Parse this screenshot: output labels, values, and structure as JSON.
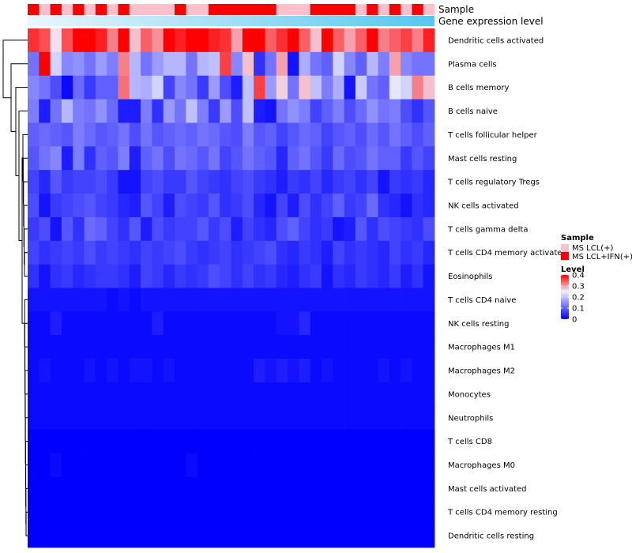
{
  "chart_data": {
    "type": "heatmap",
    "annotations": {
      "sample_label": "Sample",
      "gene_label": "Gene expression level"
    },
    "sample_groups": [
      1,
      0,
      1,
      0,
      1,
      0,
      1,
      0,
      1,
      0,
      0,
      0,
      0,
      1,
      0,
      0,
      1,
      1,
      1,
      1,
      1,
      1,
      0,
      0,
      0,
      1,
      1,
      1,
      1,
      0,
      1,
      0,
      1,
      0,
      1,
      0
    ],
    "rows": [
      "Dendritic cells activated",
      "Plasma cells",
      "B cells memory",
      "B cells naive",
      "T cells follicular helper",
      "Mast cells resting",
      "T cells regulatory  Tregs",
      "NK cells activated",
      "T cells gamma delta",
      "T cells CD4 memory activated",
      "Eosinophils",
      "T cells CD4 naive",
      "NK cells resting",
      "Macrophages M1",
      "Macrophages M2",
      "Monocytes",
      "Neutrophils",
      "T cells CD8",
      "Macrophages M0",
      "Mast cells activated",
      "T cells CD4 memory resting",
      "Dendritic cells resting"
    ],
    "values": [
      [
        0.37,
        0.35,
        0.26,
        0.35,
        0.4,
        0.4,
        0.38,
        0.32,
        0.4,
        0.28,
        0.34,
        0.31,
        0.4,
        0.38,
        0.4,
        0.4,
        0.38,
        0.37,
        0.3,
        0.4,
        0.4,
        0.34,
        0.37,
        0.4,
        0.34,
        0.28,
        0.4,
        0.34,
        0.3,
        0.34,
        0.4,
        0.32,
        0.34,
        0.36,
        0.32,
        0.38
      ],
      [
        0.12,
        0.4,
        0.22,
        0.14,
        0.15,
        0.12,
        0.16,
        0.13,
        0.32,
        0.19,
        0.12,
        0.16,
        0.19,
        0.19,
        0.12,
        0.19,
        0.2,
        0.36,
        0.14,
        0.28,
        0.05,
        0.12,
        0.3,
        0.02,
        0.18,
        0.12,
        0.1,
        0.22,
        0.14,
        0.1,
        0.19,
        0.13,
        0.3,
        0.14,
        0.12,
        0.12
      ],
      [
        0.14,
        0.12,
        0.08,
        0.01,
        0.11,
        0.06,
        0.1,
        0.1,
        0.33,
        0.19,
        0.18,
        0.22,
        0.07,
        0.14,
        0.12,
        0.06,
        0.16,
        0.08,
        0.03,
        0.2,
        0.36,
        0.16,
        0.27,
        0.12,
        0.28,
        0.2,
        0.13,
        0.18,
        0.02,
        0.21,
        0.12,
        0.1,
        0.24,
        0.22,
        0.32,
        0.28
      ],
      [
        0.13,
        0.03,
        0.12,
        0.19,
        0.13,
        0.12,
        0.15,
        0.11,
        0.03,
        0.03,
        0.13,
        0.05,
        0.16,
        0.12,
        0.2,
        0.13,
        0.06,
        0.16,
        0.08,
        0.2,
        0.03,
        0.02,
        0.12,
        0.15,
        0.13,
        0.07,
        0.1,
        0.13,
        0.08,
        0.11,
        0.15,
        0.12,
        0.13,
        0.08,
        0.05,
        0.09
      ],
      [
        0.1,
        0.11,
        0.1,
        0.09,
        0.13,
        0.11,
        0.09,
        0.1,
        0.12,
        0.08,
        0.12,
        0.09,
        0.1,
        0.11,
        0.1,
        0.12,
        0.11,
        0.09,
        0.08,
        0.13,
        0.09,
        0.1,
        0.07,
        0.09,
        0.11,
        0.1,
        0.07,
        0.09,
        0.1,
        0.08,
        0.11,
        0.09,
        0.12,
        0.1,
        0.08,
        0.1
      ],
      [
        0.09,
        0.12,
        0.14,
        0.03,
        0.13,
        0.05,
        0.1,
        0.09,
        0.13,
        0.03,
        0.1,
        0.12,
        0.08,
        0.12,
        0.11,
        0.09,
        0.12,
        0.07,
        0.09,
        0.12,
        0.1,
        0.09,
        0.04,
        0.1,
        0.12,
        0.09,
        0.06,
        0.11,
        0.08,
        0.09,
        0.12,
        0.1,
        0.1,
        0.06,
        0.09,
        0.07
      ],
      [
        0.07,
        0.04,
        0.09,
        0.06,
        0.07,
        0.07,
        0.08,
        0.06,
        0.02,
        0.02,
        0.07,
        0.08,
        0.06,
        0.06,
        0.09,
        0.07,
        0.06,
        0.05,
        0.07,
        0.08,
        0.06,
        0.05,
        0.03,
        0.06,
        0.05,
        0.07,
        0.04,
        0.06,
        0.07,
        0.05,
        0.07,
        0.02,
        0.06,
        0.05,
        0.06,
        0.04
      ],
      [
        0.08,
        0.02,
        0.06,
        0.07,
        0.08,
        0.09,
        0.07,
        0.06,
        0.04,
        0.03,
        0.09,
        0.07,
        0.03,
        0.08,
        0.07,
        0.06,
        0.09,
        0.05,
        0.06,
        0.08,
        0.04,
        0.02,
        0.07,
        0.03,
        0.08,
        0.05,
        0.07,
        0.1,
        0.06,
        0.07,
        0.11,
        0.05,
        0.04,
        0.02,
        0.05,
        0.04
      ],
      [
        0.06,
        0.08,
        0.02,
        0.09,
        0.05,
        0.11,
        0.1,
        0.07,
        0.05,
        0.09,
        0.03,
        0.08,
        0.06,
        0.07,
        0.07,
        0.09,
        0.06,
        0.08,
        0.03,
        0.07,
        0.05,
        0.04,
        0.08,
        0.1,
        0.07,
        0.05,
        0.06,
        0.02,
        0.03,
        0.09,
        0.05,
        0.08,
        0.07,
        0.06,
        0.05,
        0.08
      ],
      [
        0.07,
        0.05,
        0.06,
        0.07,
        0.06,
        0.08,
        0.06,
        0.07,
        0.06,
        0.05,
        0.07,
        0.06,
        0.07,
        0.08,
        0.06,
        0.05,
        0.06,
        0.07,
        0.05,
        0.06,
        0.07,
        0.08,
        0.05,
        0.04,
        0.06,
        0.05,
        0.03,
        0.07,
        0.05,
        0.06,
        0.05,
        0.04,
        0.07,
        0.05,
        0.06,
        0.04
      ],
      [
        0.05,
        0.02,
        0.05,
        0.06,
        0.04,
        0.05,
        0.06,
        0.06,
        0.05,
        0.03,
        0.07,
        0.06,
        0.04,
        0.06,
        0.05,
        0.06,
        0.08,
        0.07,
        0.05,
        0.07,
        0.05,
        0.06,
        0.04,
        0.03,
        0.05,
        0.06,
        0.02,
        0.05,
        0.04,
        0.06,
        0.05,
        0.04,
        0.06,
        0.03,
        0.05,
        0.02
      ],
      [
        0.02,
        0.02,
        0.02,
        0.02,
        0.02,
        0.02,
        0.02,
        0.01,
        0.02,
        0.01,
        0.02,
        0.02,
        0.02,
        0.02,
        0.02,
        0.02,
        0.02,
        0.02,
        0.02,
        0.02,
        0.02,
        0.02,
        0.02,
        0.02,
        0.02,
        0.02,
        0.02,
        0.02,
        0.02,
        0.02,
        0.02,
        0.02,
        0.02,
        0.02,
        0.02,
        0.02
      ],
      [
        0.01,
        0.01,
        0.03,
        0.01,
        0.01,
        0.01,
        0.01,
        0.01,
        0.01,
        0.01,
        0.01,
        0.03,
        0.01,
        0.01,
        0.01,
        0.01,
        0.01,
        0.01,
        0.01,
        0.01,
        0.01,
        0.01,
        0.02,
        0.02,
        0.04,
        0.01,
        0.01,
        0.01,
        0.01,
        0.01,
        0.01,
        0.01,
        0.01,
        0.01,
        0.01,
        0.01
      ],
      [
        0.01,
        0.01,
        0.01,
        0.01,
        0.01,
        0.01,
        0.01,
        0.01,
        0.01,
        0.01,
        0.01,
        0.01,
        0.01,
        0.01,
        0.01,
        0.01,
        0.01,
        0.01,
        0.01,
        0.01,
        0.01,
        0.01,
        0.01,
        0.01,
        0.01,
        0.01,
        0.01,
        0.01,
        0.01,
        0.01,
        0.01,
        0.01,
        0.01,
        0.01,
        0.01,
        0.01
      ],
      [
        0.01,
        0.02,
        0.01,
        0.01,
        0.01,
        0.02,
        0.01,
        0.02,
        0.01,
        0.02,
        0.02,
        0.01,
        0.02,
        0.01,
        0.01,
        0.01,
        0.01,
        0.01,
        0.01,
        0.01,
        0.03,
        0.02,
        0.03,
        0.02,
        0.03,
        0.01,
        0.02,
        0.01,
        0.01,
        0.01,
        0.01,
        0.02,
        0.01,
        0.02,
        0.01,
        0.01
      ],
      [
        0.01,
        0.01,
        0.01,
        0.01,
        0.01,
        0.01,
        0.01,
        0.01,
        0.01,
        0.01,
        0.01,
        0.01,
        0.01,
        0.01,
        0.01,
        0.01,
        0.01,
        0.01,
        0.01,
        0.01,
        0.01,
        0.01,
        0.01,
        0.01,
        0.01,
        0.01,
        0.01,
        0.01,
        0.01,
        0.01,
        0.01,
        0.01,
        0.01,
        0.01,
        0.01,
        0.01
      ],
      [
        0.01,
        0.01,
        0.01,
        0.01,
        0.01,
        0.01,
        0.01,
        0.01,
        0.01,
        0.01,
        0.01,
        0.01,
        0.01,
        0.01,
        0.01,
        0.01,
        0.01,
        0.01,
        0.01,
        0.01,
        0.01,
        0.01,
        0.01,
        0.01,
        0.01,
        0.01,
        0.01,
        0.01,
        0.01,
        0.01,
        0.01,
        0.01,
        0.01,
        0.01,
        0.01,
        0.01
      ],
      [
        0.0,
        0.0,
        0.0,
        0.0,
        0.0,
        0.0,
        0.0,
        0.0,
        0.0,
        0.0,
        0.0,
        0.0,
        0.0,
        0.0,
        0.0,
        0.0,
        0.0,
        0.0,
        0.0,
        0.0,
        0.0,
        0.0,
        0.0,
        0.0,
        0.0,
        0.0,
        0.0,
        0.0,
        0.0,
        0.0,
        0.0,
        0.0,
        0.0,
        0.0,
        0.0,
        0.0
      ],
      [
        0.0,
        0.0,
        0.01,
        0.0,
        0.0,
        0.0,
        0.0,
        0.0,
        0.0,
        0.0,
        0.0,
        0.0,
        0.0,
        0.0,
        0.01,
        0.0,
        0.0,
        0.0,
        0.0,
        0.0,
        0.0,
        0.0,
        0.0,
        0.0,
        0.0,
        0.0,
        0.0,
        0.0,
        0.0,
        0.0,
        0.0,
        0.0,
        0.0,
        0.0,
        0.0,
        0.0
      ],
      [
        0.0,
        0.0,
        0.0,
        0.0,
        0.0,
        0.0,
        0.0,
        0.0,
        0.0,
        0.0,
        0.0,
        0.0,
        0.0,
        0.0,
        0.0,
        0.0,
        0.0,
        0.0,
        0.0,
        0.0,
        0.0,
        0.0,
        0.0,
        0.0,
        0.0,
        0.0,
        0.0,
        0.0,
        0.0,
        0.0,
        0.0,
        0.0,
        0.0,
        0.0,
        0.0,
        0.0
      ],
      [
        0.0,
        0.0,
        0.0,
        0.0,
        0.0,
        0.0,
        0.0,
        0.0,
        0.0,
        0.0,
        0.0,
        0.0,
        0.0,
        0.0,
        0.0,
        0.0,
        0.0,
        0.0,
        0.0,
        0.0,
        0.0,
        0.0,
        0.0,
        0.0,
        0.0,
        0.0,
        0.0,
        0.0,
        0.0,
        0.0,
        0.0,
        0.0,
        0.0,
        0.0,
        0.0,
        0.0
      ],
      [
        0.0,
        0.0,
        0.0,
        0.0,
        0.0,
        0.0,
        0.0,
        0.0,
        0.0,
        0.0,
        0.0,
        0.0,
        0.0,
        0.0,
        0.0,
        0.0,
        0.0,
        0.0,
        0.0,
        0.0,
        0.0,
        0.0,
        0.0,
        0.0,
        0.0,
        0.0,
        0.0,
        0.0,
        0.0,
        0.0,
        0.0,
        0.0,
        0.0,
        0.0,
        0.0,
        0.0
      ]
    ],
    "value_range": [
      0,
      0.4
    ],
    "colors": {
      "low": "#0000ff",
      "mid": "#f0f0ff",
      "high": "#ff0000",
      "mid_value": 0.25
    },
    "legend": {
      "sample_title": "Sample",
      "sample_items": [
        {
          "label": "MS LCL(+)",
          "color": "#ffc0cb"
        },
        {
          "label": "MS LCL+IFN(+)",
          "color": "#ff0000"
        }
      ],
      "level_title": "Level",
      "level_ticks": [
        {
          "value": 0.4,
          "label": "0.4"
        },
        {
          "value": 0.3,
          "label": "0.3"
        },
        {
          "value": 0.2,
          "label": "0.2"
        },
        {
          "value": 0.1,
          "label": "0.1"
        },
        {
          "value": 0,
          "label": "0"
        }
      ],
      "placement": "right"
    },
    "gene_gradient": {
      "from": "#eaf6fc",
      "to": "#55c8ee"
    }
  }
}
